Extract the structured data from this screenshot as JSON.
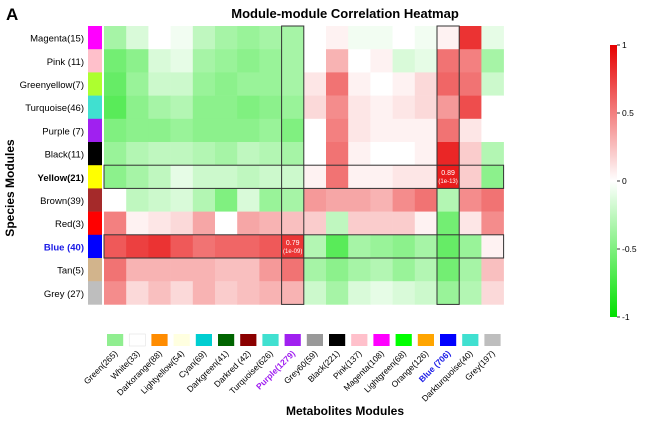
{
  "panel_label": "A",
  "chart_data": {
    "type": "heatmap",
    "title": "Module-module Correlation Heatmap",
    "xlabel": "Metabolites Modules",
    "ylabel": "Species Modules",
    "color_scale": {
      "min": -1,
      "max": 1,
      "low_color": "#00e000",
      "mid_color": "#ffffff",
      "high_color": "#e60000"
    },
    "colorbar_ticks": [
      {
        "value": 1,
        "label": "1"
      },
      {
        "value": 0.5,
        "label": "0.5"
      },
      {
        "value": 0,
        "label": "0"
      },
      {
        "value": -0.5,
        "label": "-0.5"
      },
      {
        "value": -1,
        "label": "-1"
      }
    ],
    "rows": [
      {
        "label": "Magenta(15)",
        "color": "#ff00ff"
      },
      {
        "label": "Pink (11)",
        "color": "#ffc0cb"
      },
      {
        "label": "Greenyellow(7)",
        "color": "#adff2f"
      },
      {
        "label": "Turquoise(46)",
        "color": "#40e0d0"
      },
      {
        "label": "Purple (7)",
        "color": "#a020f0"
      },
      {
        "label": "Black(11)",
        "color": "#000000"
      },
      {
        "label": "Yellow(21)",
        "color": "#ffff00",
        "bold": true
      },
      {
        "label": "Brown(39)",
        "color": "#a52a2a"
      },
      {
        "label": "Red(3)",
        "color": "#ff0000"
      },
      {
        "label": "Blue (40)",
        "color": "#0000ff",
        "bold": true,
        "text_color": "#1a1ae6"
      },
      {
        "label": "Tan(5)",
        "color": "#d2b48c"
      },
      {
        "label": "Grey (27)",
        "color": "#bebebe"
      }
    ],
    "columns": [
      {
        "label": "Green(265)",
        "color": "#90ee90"
      },
      {
        "label": "White(33)",
        "color": "#ffffff"
      },
      {
        "label": "Darkorange(88)",
        "color": "#ff8c00"
      },
      {
        "label": "Lightyellow(54)",
        "color": "#ffffe0"
      },
      {
        "label": "Cyan(69)",
        "color": "#00ced1"
      },
      {
        "label": "Darkgreen(41)",
        "color": "#006400"
      },
      {
        "label": "Darkred (42)",
        "color": "#8b0000"
      },
      {
        "label": "Turquoise(626)",
        "color": "#40e0d0"
      },
      {
        "label": "Purple(1279)",
        "color": "#a020f0",
        "bold": true,
        "text_color": "#a020f0"
      },
      {
        "label": "Grey60(59)",
        "color": "#999999"
      },
      {
        "label": "Black(221)",
        "color": "#000000"
      },
      {
        "label": "Pink(137)",
        "color": "#ffc0cb"
      },
      {
        "label": "Magenta(108)",
        "color": "#ff00ff"
      },
      {
        "label": "Lightgreen(68)",
        "color": "#00ff00"
      },
      {
        "label": "Orange(126)",
        "color": "#ffa500"
      },
      {
        "label": "Blue (706)",
        "color": "#0000ff",
        "bold": true,
        "text_color": "#1a1ae6"
      },
      {
        "label": "Darkturquoise(40)",
        "color": "#40e0d0"
      },
      {
        "label": "Grey(197)",
        "color": "#bebebe"
      }
    ],
    "values": [
      [
        -0.35,
        -0.15,
        0,
        -0.05,
        -0.25,
        -0.35,
        -0.4,
        -0.35,
        -0.35,
        0,
        0.05,
        -0.05,
        -0.05,
        0,
        -0.05,
        0.05,
        0.8,
        -0.1
      ],
      [
        -0.55,
        -0.45,
        -0.15,
        -0.1,
        -0.35,
        -0.4,
        -0.45,
        -0.4,
        -0.35,
        0,
        0.3,
        0,
        0.05,
        -0.15,
        -0.1,
        0.55,
        0.5,
        -0.35
      ],
      [
        -0.6,
        -0.4,
        -0.2,
        -0.2,
        -0.4,
        -0.45,
        -0.4,
        -0.4,
        -0.35,
        0.1,
        0.55,
        0.05,
        0,
        0.05,
        0.15,
        0.6,
        0.55,
        -0.2
      ],
      [
        -0.65,
        -0.45,
        -0.35,
        -0.3,
        -0.45,
        -0.45,
        -0.5,
        -0.45,
        -0.4,
        0.15,
        0.45,
        0.1,
        0.05,
        0.1,
        0.15,
        0.4,
        0.7,
        0
      ],
      [
        -0.5,
        -0.45,
        -0.45,
        -0.4,
        -0.45,
        -0.45,
        -0.45,
        -0.4,
        -0.5,
        0,
        0.5,
        0.1,
        0.05,
        0.05,
        0.05,
        0.55,
        0.1,
        0
      ],
      [
        -0.4,
        -0.3,
        -0.25,
        -0.25,
        -0.3,
        -0.35,
        -0.25,
        -0.3,
        -0.35,
        0,
        0.55,
        0.05,
        0,
        0,
        0.05,
        0.85,
        0.2,
        -0.3
      ],
      [
        -0.45,
        -0.35,
        -0.25,
        -0.1,
        -0.2,
        -0.2,
        -0.25,
        -0.2,
        -0.2,
        0.05,
        0.55,
        0.05,
        0.05,
        0.1,
        0.1,
        0.89,
        0.2,
        -0.45
      ],
      [
        0,
        -0.25,
        -0.2,
        -0.15,
        -0.3,
        -0.5,
        -0.15,
        -0.4,
        -0.35,
        0.4,
        0.35,
        0.35,
        0.3,
        0.45,
        0.55,
        -0.3,
        0.45,
        0.55
      ],
      [
        0.5,
        0.05,
        0.1,
        0.15,
        0.35,
        0,
        0.35,
        0.3,
        0.25,
        0.2,
        -0.25,
        0.2,
        0.2,
        0.2,
        0.05,
        -0.55,
        0.1,
        0.45
      ],
      [
        0.65,
        0.75,
        0.8,
        0.65,
        0.55,
        0.6,
        0.6,
        0.65,
        0.79,
        -0.3,
        -0.65,
        -0.35,
        -0.4,
        -0.45,
        -0.35,
        -0.6,
        -0.4,
        0.05
      ],
      [
        0.55,
        0.3,
        0.3,
        0.3,
        0.3,
        0.25,
        0.25,
        0.4,
        0.55,
        -0.35,
        -0.45,
        -0.35,
        -0.3,
        -0.4,
        -0.3,
        -0.55,
        -0.35,
        0.25
      ],
      [
        0.45,
        0.15,
        0.25,
        0.15,
        0.3,
        0.2,
        0.25,
        0.3,
        0.3,
        -0.2,
        -0.35,
        -0.15,
        -0.1,
        -0.15,
        -0.2,
        -0.4,
        -0.3,
        0.15
      ]
    ],
    "annotations": [
      {
        "row": 6,
        "col": 15,
        "text": "0.89",
        "subtext": "(1e-13)"
      },
      {
        "row": 9,
        "col": 8,
        "text": "0.79",
        "subtext": "(1e-09)"
      }
    ],
    "highlight_boxes": [
      {
        "row_start": 6,
        "row_end": 6,
        "col_start": 0,
        "col_end": 17
      },
      {
        "row_start": 9,
        "row_end": 9,
        "col_start": 0,
        "col_end": 17
      },
      {
        "row_start": 0,
        "row_end": 11,
        "col_start": 8,
        "col_end": 8
      },
      {
        "row_start": 0,
        "row_end": 11,
        "col_start": 15,
        "col_end": 15
      }
    ]
  }
}
